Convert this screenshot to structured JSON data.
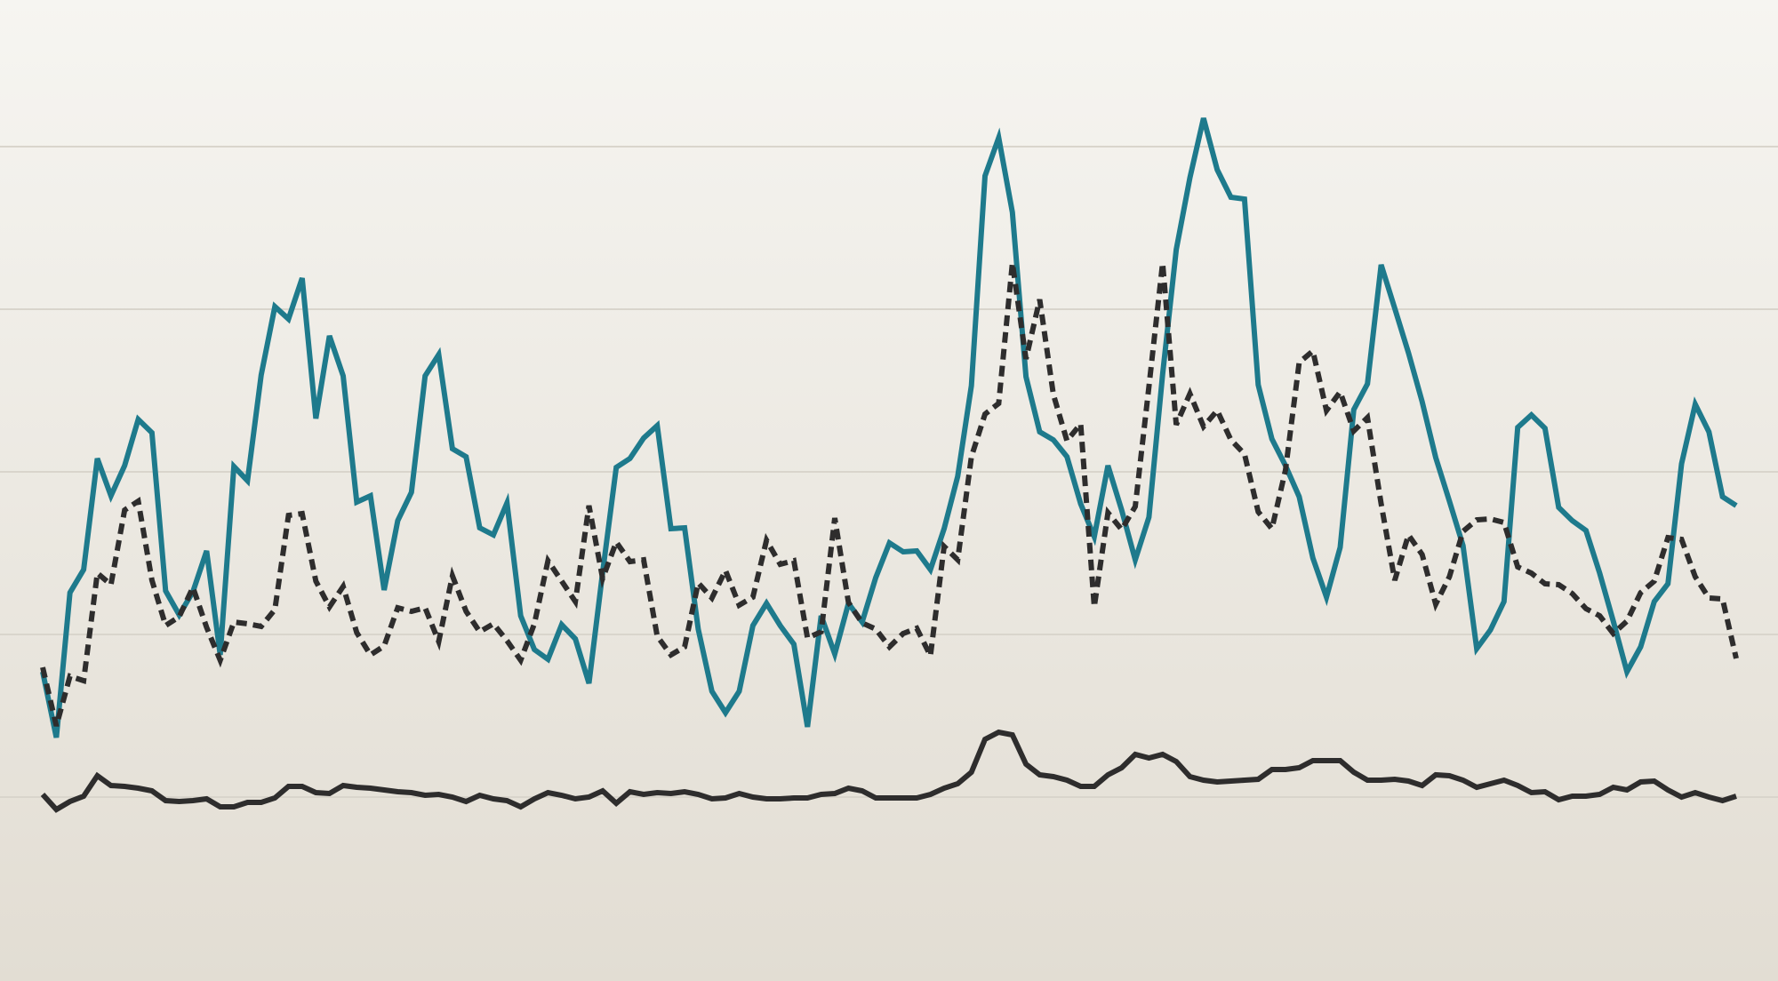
{
  "colors": {
    "background_top": "#f6f5f1",
    "background_bottom": "#e2ddd3",
    "grid": "#d9d5cc",
    "teal": "#1e7a8c",
    "dark": "#2e2d2d"
  },
  "chart_data": {
    "type": "line",
    "title": "",
    "xlabel": "",
    "ylabel": "",
    "grid": true,
    "legend": "none",
    "x_count": 125,
    "ylim": [
      0,
      1104
    ],
    "gridline_values": [
      207,
      390,
      573,
      756,
      939
    ],
    "series": [
      {
        "color": "#1e7a8c",
        "style": "solid",
        "values": [
          348,
          274,
          437,
          463,
          588,
          546,
          580,
          632,
          617,
          439,
          412,
          438,
          484,
          367,
          579,
          563,
          682,
          759,
          745,
          791,
          633,
          726,
          681,
          539,
          546,
          440,
          518,
          550,
          681,
          705,
          599,
          590,
          510,
          502,
          538,
          411,
          373,
          362,
          401,
          385,
          335,
          460,
          578,
          588,
          611,
          625,
          509,
          510,
          396,
          326,
          302,
          326,
          400,
          425,
          400,
          379,
          286,
          411,
          368,
          425,
          404,
          454,
          493,
          483,
          484,
          463,
          509,
          568,
          670,
          906,
          949,
          865,
          680,
          618,
          609,
          590,
          537,
          500,
          580,
          530,
          474,
          522,
          683,
          823,
          904,
          971,
          913,
          882,
          880,
          671,
          610,
          580,
          545,
          476,
          432,
          488,
          643,
          672,
          806,
          757,
          707,
          652,
          589,
          540,
          490,
          374,
          395,
          427,
          623,
          637,
          622,
          533,
          518,
          507,
          459,
          405,
          348,
          376,
          427,
          447,
          582,
          649,
          618,
          545,
          535
        ]
      },
      {
        "color": "#2e2d2d",
        "style": "dashed",
        "values": [
          353,
          287,
          343,
          338,
          459,
          446,
          530,
          540,
          451,
          400,
          410,
          443,
          398,
          361,
          404,
          402,
          399,
          418,
          524,
          526,
          450,
          421,
          444,
          392,
          367,
          377,
          420,
          416,
          420,
          382,
          456,
          416,
          393,
          402,
          383,
          361,
          402,
          473,
          450,
          427,
          535,
          453,
          494,
          472,
          474,
          388,
          367,
          376,
          448,
          431,
          462,
          423,
          432,
          496,
          469,
          473,
          386,
          393,
          521,
          426,
          403,
          396,
          376,
          391,
          397,
          366,
          489,
          474,
          590,
          638,
          650,
          808,
          700,
          767,
          660,
          608,
          627,
          421,
          527,
          508,
          534,
          669,
          808,
          626,
          661,
          624,
          642,
          609,
          593,
          528,
          509,
          575,
          696,
          709,
          642,
          663,
          619,
          634,
          537,
          451,
          502,
          480,
          424,
          455,
          506,
          519,
          520,
          516,
          466,
          459,
          447,
          446,
          436,
          419,
          411,
          391,
          405,
          437,
          450,
          499,
          497,
          455,
          431,
          430,
          363
        ]
      },
      {
        "color": "#2e2d2d",
        "style": "solid",
        "values": [
          210,
          193,
          202,
          208,
          231,
          220,
          219,
          217,
          214,
          203,
          202,
          203,
          205,
          196,
          196,
          201,
          201,
          206,
          219,
          219,
          212,
          211,
          220,
          218,
          217,
          215,
          213,
          212,
          209,
          210,
          207,
          202,
          209,
          205,
          203,
          196,
          205,
          212,
          209,
          205,
          207,
          214,
          200,
          213,
          210,
          212,
          211,
          213,
          210,
          205,
          206,
          211,
          207,
          205,
          205,
          206,
          206,
          210,
          211,
          217,
          214,
          206,
          206,
          206,
          206,
          210,
          217,
          222,
          235,
          272,
          280,
          277,
          244,
          232,
          230,
          226,
          219,
          219,
          232,
          240,
          255,
          251,
          255,
          247,
          230,
          226,
          224,
          225,
          226,
          227,
          238,
          238,
          240,
          248,
          248,
          248,
          235,
          226,
          226,
          227,
          225,
          220,
          232,
          231,
          226,
          218,
          222,
          226,
          220,
          212,
          213,
          204,
          208,
          208,
          210,
          218,
          215,
          224,
          225,
          215,
          207,
          212,
          207,
          203,
          208
        ]
      }
    ]
  }
}
